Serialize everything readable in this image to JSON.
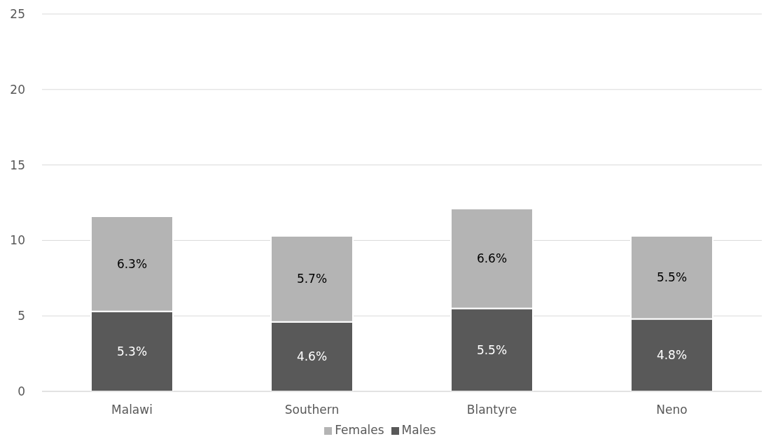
{
  "chart_data": {
    "type": "bar",
    "stacked": true,
    "categories": [
      "Malawi",
      "Southern",
      "Blantyre",
      "Neno"
    ],
    "series": [
      {
        "name": "Males",
        "color": "#595959",
        "values": [
          5.3,
          4.6,
          5.5,
          4.8
        ],
        "value_labels": [
          "5.3%",
          "4.6%",
          "5.5%",
          "4.8%"
        ]
      },
      {
        "name": "Females",
        "color": "#b4b4b4",
        "values": [
          6.3,
          5.7,
          6.6,
          5.5
        ],
        "value_labels": [
          "6.3%",
          "5.7%",
          "6.6%",
          "5.5%"
        ]
      }
    ],
    "ylim": [
      0,
      25
    ],
    "yticks": [
      0,
      5,
      10,
      15,
      20,
      25
    ],
    "grid": "y",
    "legend": "bottom"
  }
}
